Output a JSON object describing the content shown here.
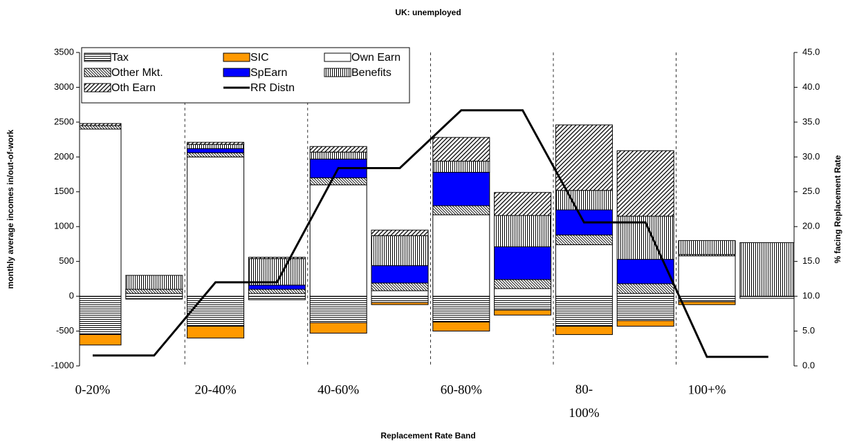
{
  "chart_data": {
    "type": "bar",
    "stacked": true,
    "title": "UK: unemployed",
    "x_label": "Replacement Rate Band",
    "y_label": "monthly average incomes in/out-of-work",
    "y2_label": "% facing Replacement Rate",
    "categories": [
      "0-20%",
      null,
      "20-40%",
      null,
      "40-60%",
      null,
      "60-80%",
      null,
      "80-100%",
      null,
      "100+%",
      null
    ],
    "series": [
      {
        "name": "Tax",
        "color": "#000000",
        "pattern": "horizontal",
        "values": [
          -550,
          -40,
          -430,
          -50,
          -380,
          -90,
          -370,
          -200,
          -430,
          -350,
          -80,
          -30
        ]
      },
      {
        "name": "SIC",
        "color": "#ff9900",
        "pattern": "solid",
        "values": [
          -150,
          0,
          -170,
          0,
          -150,
          -30,
          -130,
          -70,
          -120,
          -80,
          -40,
          0
        ]
      },
      {
        "name": "Own Earn",
        "color": "#ffffff",
        "pattern": "solid",
        "values": [
          2400,
          40,
          2000,
          40,
          1600,
          80,
          1170,
          110,
          740,
          40,
          580,
          0
        ]
      },
      {
        "name": "Other Mkt.",
        "color": "#000000",
        "pattern": "diagonal-down",
        "values": [
          50,
          60,
          60,
          60,
          100,
          110,
          130,
          130,
          140,
          140,
          20,
          0
        ]
      },
      {
        "name": "SpEarn",
        "color": "#0000ff",
        "pattern": "solid",
        "values": [
          0,
          0,
          60,
          60,
          270,
          250,
          480,
          470,
          360,
          350,
          0,
          0
        ]
      },
      {
        "name": "Benefits",
        "color": "#000000",
        "pattern": "vertical",
        "values": [
          0,
          200,
          60,
          380,
          100,
          430,
          160,
          450,
          280,
          620,
          200,
          770
        ]
      },
      {
        "name": "Oth Earn",
        "color": "#000000",
        "pattern": "diagonal-up",
        "values": [
          30,
          0,
          30,
          20,
          80,
          80,
          340,
          330,
          940,
          940,
          0,
          0
        ]
      },
      {
        "name": "RR Distn",
        "color": "#000000",
        "type": "line",
        "axis": "y2",
        "values": [
          1.5,
          1.5,
          12.0,
          12.0,
          28.4,
          28.4,
          36.7,
          36.7,
          20.6,
          20.6,
          1.3,
          1.3
        ]
      }
    ],
    "ylim": [
      -1000,
      3500
    ],
    "yticks": [
      -1000,
      -500,
      0,
      500,
      1000,
      1500,
      2000,
      2500,
      3000,
      3500
    ],
    "y2lim": [
      0,
      45
    ],
    "y2ticks": [
      {
        "value": 0,
        "label": "0.0"
      },
      {
        "value": 5,
        "label": "5.0"
      },
      {
        "value": 10,
        "label": "10.0"
      },
      {
        "value": 15,
        "label": "15.0"
      },
      {
        "value": 20,
        "label": "20.0"
      },
      {
        "value": 25,
        "label": "25.0"
      },
      {
        "value": 30,
        "label": "30.0"
      },
      {
        "value": 35,
        "label": "35.0"
      },
      {
        "value": 40,
        "label": "40.0"
      },
      {
        "value": 45,
        "label": "45.0"
      }
    ],
    "legend": "top-left",
    "grid": false
  }
}
